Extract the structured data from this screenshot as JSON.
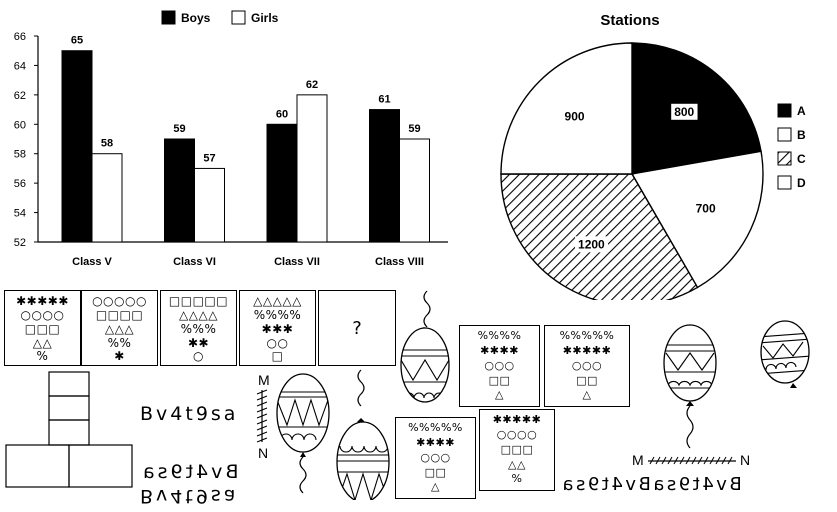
{
  "chart_data": [
    {
      "type": "bar",
      "categories": [
        "Class V",
        "Class VI",
        "Class VII",
        "Class VIII"
      ],
      "series": [
        {
          "name": "Boys",
          "values": [
            65,
            59,
            60,
            61
          ],
          "color": "#000000"
        },
        {
          "name": "Girls",
          "values": [
            58,
            57,
            62,
            59
          ],
          "color": "#ffffff"
        }
      ],
      "ylim": [
        52,
        66
      ],
      "yticks": [
        52,
        54,
        56,
        58,
        60,
        62,
        64,
        66
      ],
      "legend": "top-center",
      "grid": false
    },
    {
      "type": "pie",
      "title": "Stations",
      "labels": [
        "A",
        "B",
        "C",
        "D"
      ],
      "values": [
        800,
        700,
        1200,
        900
      ],
      "fills": [
        "solid-black",
        "white",
        "diagonal-hatch",
        "white"
      ],
      "legend": "right"
    }
  ],
  "puzzle": {
    "cells": [
      [
        "✱✱✱✱✱",
        "○○○○",
        "□□□",
        "△△",
        "%"
      ],
      [
        "○○○○○",
        "□□□□",
        "△△△",
        "%%",
        "✱"
      ],
      [
        "□□□□□",
        "△△△△",
        "%%%",
        "✱✱",
        "○"
      ],
      [
        "△△△△△",
        "%%%%",
        "✱✱✱",
        "○○",
        "□"
      ]
    ],
    "question": "?"
  },
  "answer_cards": [
    [
      "%%%%",
      "✱✱✱✱",
      "○○○",
      "□□",
      "△"
    ],
    [
      "%%%%%",
      "✱✱✱✱✱",
      "○○○",
      "□□",
      "△"
    ],
    [
      "%%%%%",
      "✱✱✱✱",
      "○○○",
      "□□",
      "△"
    ],
    [
      "✱✱✱✱✱",
      "○○○○",
      "□□□",
      "△△",
      "%"
    ]
  ],
  "mirror_text": {
    "original": "Bv4t9sa",
    "mirror_letter_top": "M",
    "mirror_letter_bottom": "N",
    "option_1": "Bv4t9sa",
    "option_2": "Bv4t9sa",
    "right_m": "M",
    "right_n": "N",
    "right_strip": "Bv4t9saBv4t9sa"
  }
}
